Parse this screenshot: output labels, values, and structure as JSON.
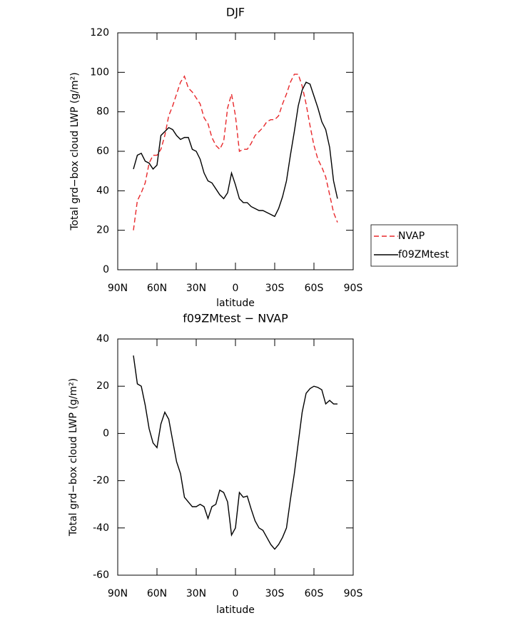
{
  "chart_data": [
    {
      "type": "line",
      "title": "DJF",
      "x_label": "latitude",
      "y_label": "Total grd−box cloud LWP (g/m²)",
      "x": [
        78,
        75,
        72,
        69,
        66,
        63,
        60,
        57,
        54,
        51,
        48,
        45,
        42,
        39,
        36,
        33,
        30,
        27,
        24,
        21,
        18,
        15,
        12,
        9,
        6,
        3,
        0,
        -3,
        -6,
        -9,
        -12,
        -15,
        -18,
        -21,
        -24,
        -27,
        -30,
        -33,
        -36,
        -39,
        -42,
        -45,
        -48,
        -51,
        -54,
        -57,
        -60,
        -63,
        -66,
        -69,
        -72,
        -75,
        -78
      ],
      "xlim": [
        90,
        -90
      ],
      "xticks": [
        {
          "value": 90,
          "label": "90N"
        },
        {
          "value": 60,
          "label": "60N"
        },
        {
          "value": 30,
          "label": "30N"
        },
        0,
        {
          "value": -30,
          "label": "30S"
        },
        {
          "value": -60,
          "label": "60S"
        },
        {
          "value": -90,
          "label": "90S"
        }
      ],
      "ylim": [
        0,
        120
      ],
      "yticks": [
        0,
        20,
        40,
        60,
        80,
        100,
        120
      ],
      "legend": "right-outside",
      "series": [
        {
          "name": "NVAP",
          "color": "#e8282b",
          "style": "dashed",
          "values": [
            20,
            35,
            39,
            44,
            54,
            58,
            58,
            61,
            68,
            78,
            83,
            89,
            95,
            98,
            92,
            90,
            87,
            84,
            77,
            74,
            67,
            63,
            61,
            65,
            82,
            89,
            78,
            60,
            61,
            61,
            64,
            68,
            70,
            72,
            75,
            76,
            76,
            78,
            84,
            89,
            95,
            99,
            99,
            93,
            84,
            73,
            63,
            56,
            52,
            47,
            38,
            29,
            24
          ]
        },
        {
          "name": "f09ZMtest",
          "color": "#000000",
          "style": "solid",
          "values": [
            51,
            58,
            59,
            55,
            54,
            51,
            53,
            68,
            70,
            72,
            71,
            68,
            66,
            67,
            67,
            61,
            60,
            56,
            49,
            45,
            44,
            41,
            38,
            36,
            39,
            49,
            43,
            36,
            34,
            34,
            32,
            31,
            30,
            30,
            29,
            28,
            27,
            31,
            37,
            45,
            58,
            70,
            83,
            91,
            95,
            94,
            88,
            82,
            75,
            71,
            62,
            45,
            36
          ]
        }
      ]
    },
    {
      "type": "line",
      "title": "f09ZMtest − NVAP",
      "x_label": "latitude",
      "y_label": "Total grd−box cloud LWP (g/m²)",
      "x": [
        78,
        75,
        72,
        69,
        66,
        63,
        60,
        57,
        54,
        51,
        48,
        45,
        42,
        39,
        36,
        33,
        30,
        27,
        24,
        21,
        18,
        15,
        12,
        9,
        6,
        3,
        0,
        -3,
        -6,
        -9,
        -12,
        -15,
        -18,
        -21,
        -24,
        -27,
        -30,
        -33,
        -36,
        -39,
        -42,
        -45,
        -48,
        -51,
        -54,
        -57,
        -60,
        -63,
        -66,
        -69,
        -72,
        -75,
        -78
      ],
      "xlim": [
        90,
        -90
      ],
      "xticks": [
        {
          "value": 90,
          "label": "90N"
        },
        {
          "value": 60,
          "label": "60N"
        },
        {
          "value": 30,
          "label": "30N"
        },
        0,
        {
          "value": -30,
          "label": "30S"
        },
        {
          "value": -60,
          "label": "60S"
        },
        {
          "value": -90,
          "label": "90S"
        }
      ],
      "ylim": [
        -60,
        40
      ],
      "yticks": [
        -60,
        -40,
        -20,
        0,
        20,
        40
      ],
      "series": [
        {
          "color": "#000000",
          "style": "solid",
          "values": [
            33,
            21,
            20,
            12,
            2,
            -4,
            -6,
            4,
            9,
            6,
            -3,
            -12,
            -17,
            -27,
            -29,
            -31,
            -31,
            -30,
            -31,
            -36,
            -31,
            -30,
            -24,
            -25,
            -29,
            -43,
            -40,
            -25,
            -27,
            -26.5,
            -32,
            -37,
            -40,
            -41,
            -44,
            -47,
            -49,
            -47,
            -44,
            -40,
            -28,
            -17,
            -4,
            9,
            17,
            19,
            20,
            19.5,
            18.5,
            12.5,
            14,
            12.5,
            12.5
          ]
        }
      ]
    }
  ]
}
